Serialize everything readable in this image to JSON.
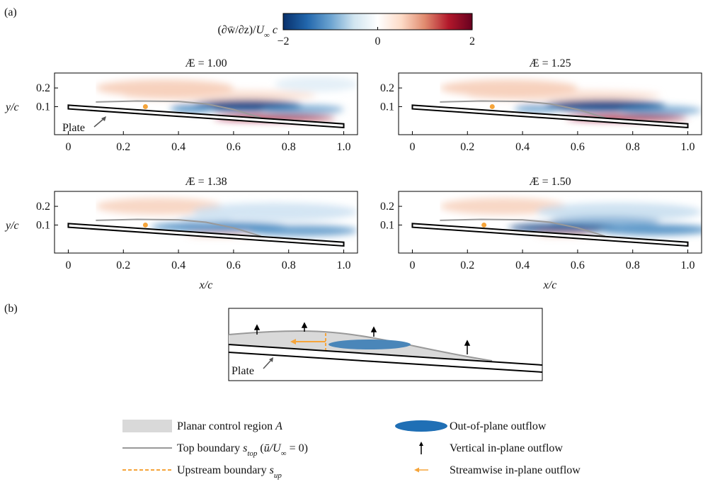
{
  "figure": {
    "panel_a": "(a)",
    "panel_b": "(b)"
  },
  "colorbar": {
    "label": [
      {
        "text": "(∂w̄/∂z)/"
      },
      {
        "text": "U",
        "italic": true
      },
      {
        "text": "∞",
        "sub": true
      },
      {
        "text": " c",
        "italic": true
      }
    ],
    "lim": [
      -2,
      2
    ],
    "ticks": [
      {
        "value": -2,
        "label": "−2"
      },
      0,
      2
    ],
    "colors": [
      "#08306b",
      "#2166ac",
      "#6ba3d0",
      "#d1e5f0",
      "#ffffff",
      "#fddbc7",
      "#e08a6e",
      "#b2182b",
      "#67001f"
    ]
  },
  "chart_data": [
    {
      "type": "contour",
      "title": "Æ = 1.00",
      "ylabel": "y/c",
      "annotation": "Plate",
      "xlim": [
        -0.05,
        1.05
      ],
      "ylim": [
        -0.05,
        0.28
      ],
      "xticks": [
        0,
        0.2,
        0.4,
        0.6,
        0.8,
        {
          "value": 1,
          "label": "1.0"
        }
      ],
      "yticks": [
        0.1,
        0.2
      ],
      "point": {
        "x": 0.28,
        "y": 0.1,
        "color": "#f5a43a"
      }
    },
    {
      "type": "contour",
      "title": "Æ = 1.25",
      "xlim": [
        -0.05,
        1.05
      ],
      "ylim": [
        -0.05,
        0.28
      ],
      "xticks": [
        0,
        0.2,
        0.4,
        0.6,
        0.8,
        {
          "value": 1,
          "label": "1.0"
        }
      ],
      "yticks": [
        0.1,
        0.2
      ],
      "point": {
        "x": 0.29,
        "y": 0.1,
        "color": "#f5a43a"
      }
    },
    {
      "type": "contour",
      "title": "Æ = 1.38",
      "ylabel": "y/c",
      "xlabel": "x/c",
      "xlim": [
        -0.05,
        1.05
      ],
      "ylim": [
        -0.05,
        0.28
      ],
      "xticks": [
        0,
        0.2,
        0.4,
        0.6,
        0.8,
        {
          "value": 1,
          "label": "1.0"
        }
      ],
      "yticks": [
        0.1,
        0.2
      ],
      "point": {
        "x": 0.28,
        "y": 0.1,
        "color": "#f5a43a"
      }
    },
    {
      "type": "contour",
      "title": "Æ = 1.50",
      "xlabel": "x/c",
      "xlim": [
        -0.05,
        1.05
      ],
      "ylim": [
        -0.05,
        0.28
      ],
      "xticks": [
        0,
        0.2,
        0.4,
        0.6,
        0.8,
        {
          "value": 1,
          "label": "1.0"
        }
      ],
      "yticks": [
        0.1,
        0.2
      ],
      "point": {
        "x": 0.26,
        "y": 0.1,
        "color": "#f5a43a"
      }
    }
  ],
  "diagram": {
    "annotation": "Plate",
    "legend": [
      {
        "swatch": "region",
        "color": "#d9d9d9",
        "parts": [
          {
            "text": "Planar control region "
          },
          {
            "text": "A",
            "italic": true
          }
        ]
      },
      {
        "swatch": "line",
        "color": "#999999",
        "parts": [
          {
            "text": "Top boundary "
          },
          {
            "text": "s",
            "italic": true
          },
          {
            "text": "top",
            "sub": true,
            "italic": true
          },
          {
            "text": " ("
          },
          {
            "text": "ū/U",
            "italic": true
          },
          {
            "text": "∞",
            "sub": true
          },
          {
            "text": " = 0)"
          }
        ]
      },
      {
        "swatch": "dashed",
        "color": "#f5a43a",
        "parts": [
          {
            "text": "Upstream boundary "
          },
          {
            "text": "s",
            "italic": true
          },
          {
            "text": "up",
            "sub": true,
            "italic": true
          }
        ]
      },
      {
        "swatch": "ellipse",
        "color": "#1f6fb5",
        "parts": [
          {
            "text": "Out-of-plane outflow"
          }
        ]
      },
      {
        "swatch": "arrow-up",
        "color": "#000000",
        "parts": [
          {
            "text": "Vertical in-plane outflow"
          }
        ]
      },
      {
        "swatch": "arrow-left",
        "color": "#f5a43a",
        "parts": [
          {
            "text": "Streamwise in-plane outflow"
          }
        ]
      }
    ]
  }
}
